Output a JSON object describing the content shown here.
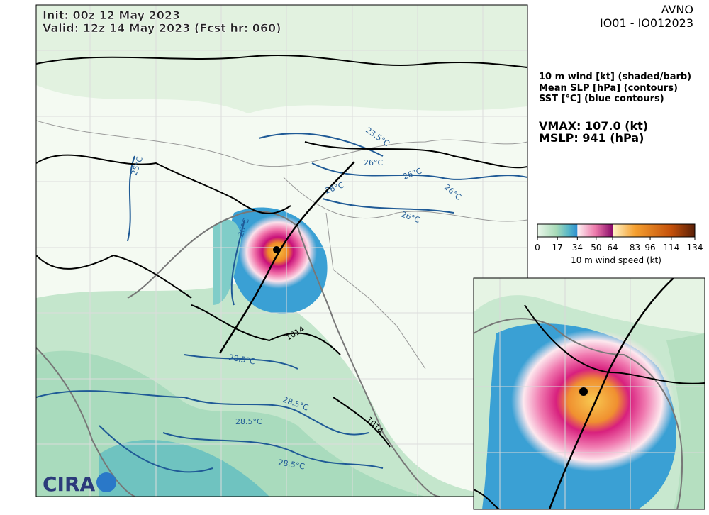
{
  "header": {
    "init": "Init:   00z 12 May 2023",
    "valid": "Valid: 12z 14 May 2023 (Fcst hr: 060)",
    "model": "AVNO",
    "storm": "IO01 - IO012023"
  },
  "legend": {
    "line1": "10 m wind [kt] (shaded/barb)",
    "line2": "Mean SLP [hPa] (contours)",
    "line3": "SST [°C] (blue contours)"
  },
  "stats": {
    "vmax": "VMAX: 107.0 (kt)",
    "mslp": "MSLP:  941 (hPa)"
  },
  "colorbar": {
    "lim": [
      0,
      134
    ],
    "ticks": [
      0,
      17,
      34,
      50,
      64,
      83,
      96,
      114,
      134
    ],
    "label": "10 m wind speed (kt)"
  },
  "map": {
    "contour_labels": [
      "23.5°C",
      "25°C",
      "26°C",
      "26°C",
      "26°C",
      "26°C",
      "26°C",
      "26°C",
      "28.5°C",
      "28.5°C",
      "28.5°C",
      "28.5°C",
      "1014",
      "1014"
    ]
  },
  "logo": "CIRA"
}
